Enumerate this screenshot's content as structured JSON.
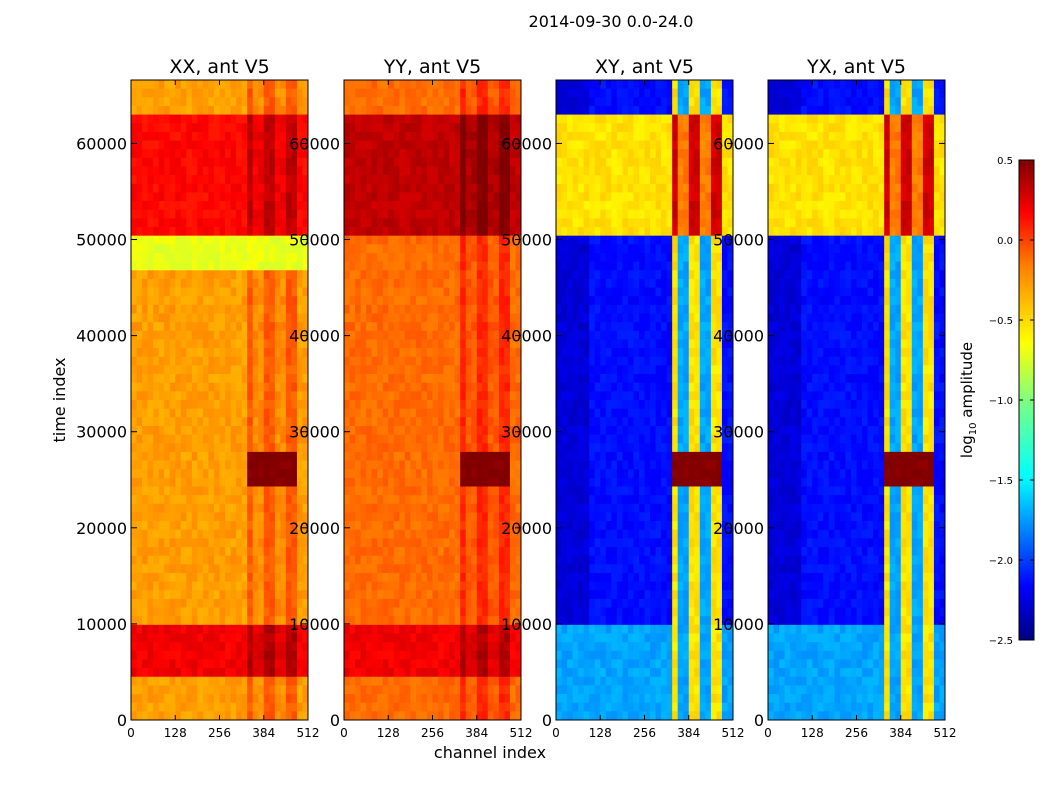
{
  "figure": {
    "suptitle": "2014-09-30 0.0-24.0",
    "xlabel": "channel index",
    "ylabel": "time index"
  },
  "chart_data": {
    "type": "heatmap",
    "x_ticks": [
      "0",
      "128",
      "256",
      "384",
      "512"
    ],
    "y_ticks": [
      "0",
      "10000",
      "20000",
      "30000",
      "40000",
      "50000",
      "60000"
    ],
    "xlim": [
      0,
      512
    ],
    "ylim": [
      0,
      66600
    ],
    "panels": [
      {
        "title": "XX, ant V5",
        "pol": "XX"
      },
      {
        "title": "YY, ant V5",
        "pol": "YY"
      },
      {
        "title": "XY, ant V5",
        "pol": "XY"
      },
      {
        "title": "YX, ant V5",
        "pol": "YX"
      }
    ],
    "colorbar": {
      "label": "log10 amplitude",
      "label_base": "log",
      "label_sub": "10",
      "label_rest": " amplitude",
      "range": [
        -2.5,
        0.5
      ],
      "tick_values": [
        -2.5,
        -2.0,
        -1.5,
        -1.0,
        -0.5,
        0.0,
        0.5
      ],
      "tick_labels": [
        "−2.5",
        "−2.0",
        "−1.5",
        "−1.0",
        "−0.5",
        "0.0",
        "0.5"
      ],
      "colormap": "jet"
    },
    "features": {
      "rfi_channel_range": [
        330,
        480
      ],
      "high_amplitude_time_range": [
        50500,
        63000
      ],
      "low_time_band": [
        4500,
        9800
      ],
      "burst_time_range": [
        24000,
        28000
      ]
    }
  }
}
